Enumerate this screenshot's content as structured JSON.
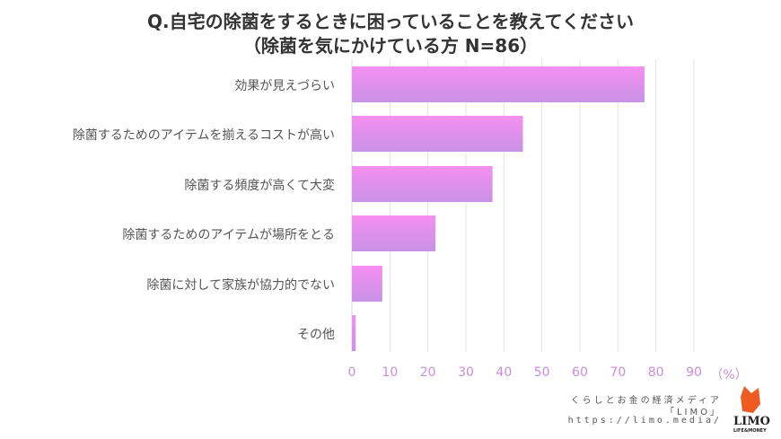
{
  "chart_data": {
    "type": "bar",
    "orientation": "horizontal",
    "title": "Q.自宅の除菌をするときに困っていることを教えてください",
    "subtitle": "（除菌を気にかけている方 N=86）",
    "categories": [
      "効果が見えづらい",
      "除菌するためのアイテムを揃えるコストが高い",
      "除菌する頻度が高くて大変",
      "除菌するためのアイテムが場所をとる",
      "除菌に対して家族が協力的でない",
      "その他"
    ],
    "values": [
      77,
      45,
      37,
      22,
      8,
      1
    ],
    "xlabel": "（%）",
    "xlim": [
      0,
      90
    ],
    "xticks": [
      "0",
      "10",
      "20",
      "30",
      "40",
      "50",
      "60",
      "70",
      "80",
      "90"
    ],
    "grid": true,
    "bar_color_top": "#f68ff0",
    "bar_color_bottom": "#c892e6"
  },
  "credit": {
    "line1": "くらしとお金の経済メディア",
    "line2": "「LIMO」",
    "line3": "https://limo.media/",
    "logo_text": "LIMO",
    "logo_sub": "LIFE&MONEY"
  }
}
